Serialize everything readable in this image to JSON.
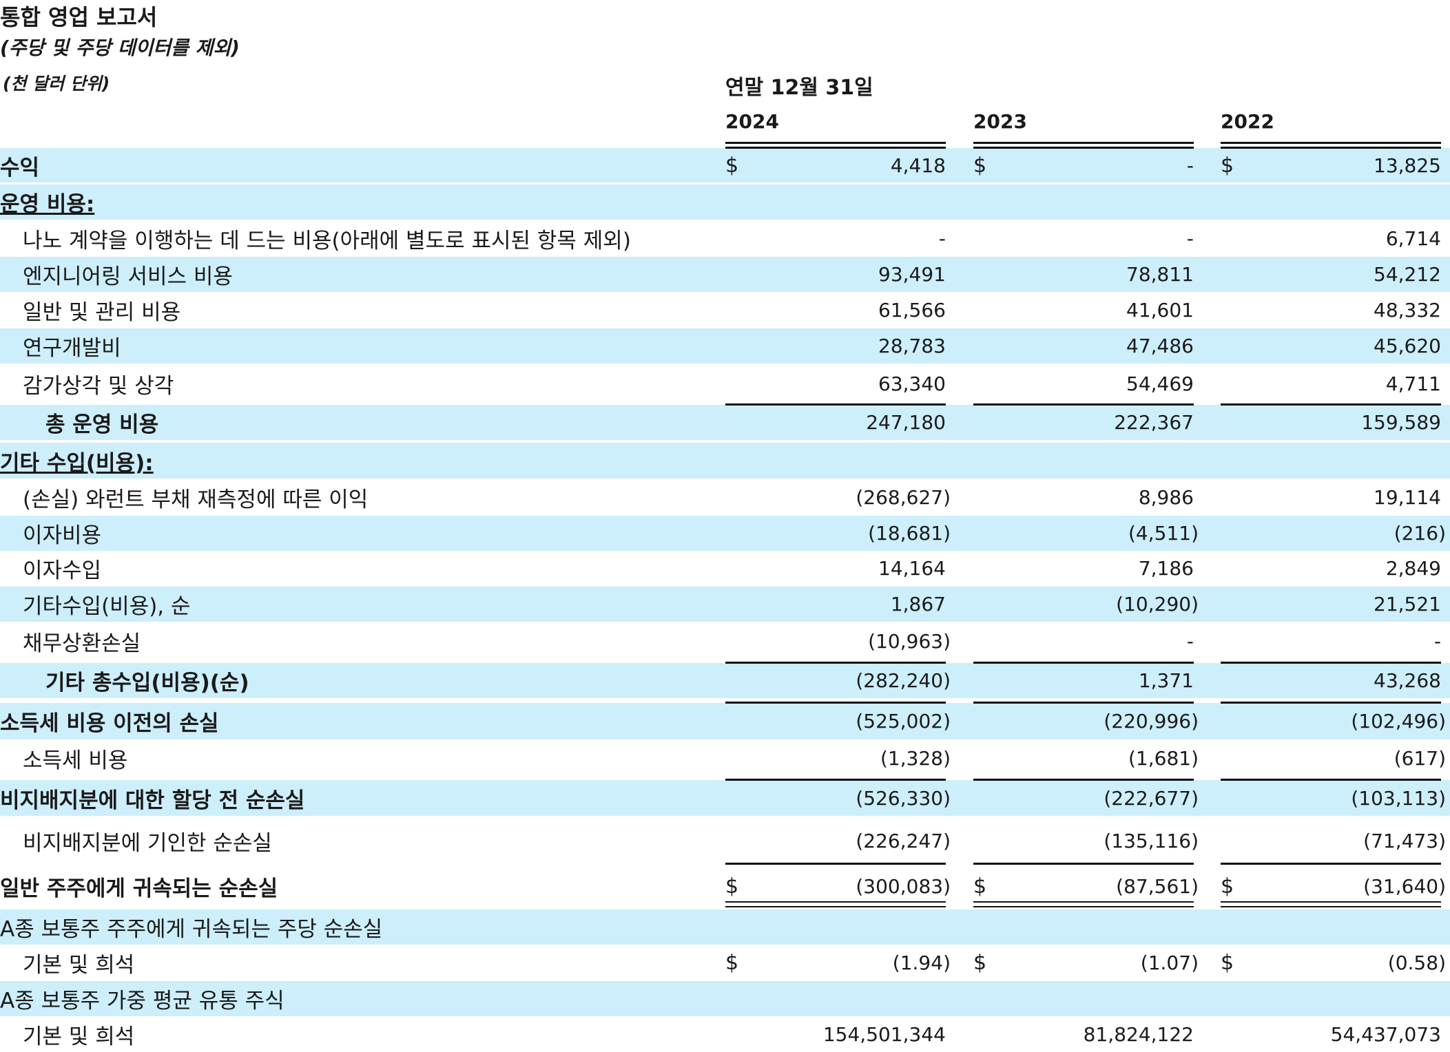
{
  "header": {
    "title": "통합 영업 보고서",
    "subtitle": "(주당 및 주당 데이터를 제외)",
    "units": "(천 달러 단위)",
    "period": "연말 12월 31일",
    "years": [
      "2024",
      "2023",
      "2022"
    ]
  },
  "rows": [
    {
      "label": "수익",
      "style": "bold",
      "shaded": true,
      "values": [
        "4,418",
        "-",
        "13,825"
      ],
      "currency": true,
      "over": [
        true,
        true,
        true
      ]
    },
    {
      "label": "운영 비용:",
      "style": "section",
      "shaded": true,
      "values": [
        "",
        "",
        ""
      ]
    },
    {
      "label": "나노 계약을 이행하는 데 드는 비용(아래에 별도로 표시된 항목 제외)",
      "style": "indent",
      "shaded": false,
      "values": [
        "-",
        "-",
        "6,714"
      ]
    },
    {
      "label": "엔지니어링 서비스 비용",
      "style": "indent",
      "shaded": true,
      "values": [
        "93,491",
        "78,811",
        "54,212"
      ]
    },
    {
      "label": "일반 및 관리 비용",
      "style": "indent",
      "shaded": false,
      "values": [
        "61,566",
        "41,601",
        "48,332"
      ]
    },
    {
      "label": "연구개발비",
      "style": "indent",
      "shaded": true,
      "values": [
        "28,783",
        "47,486",
        "45,620"
      ]
    },
    {
      "label": "감가상각 및 상각",
      "style": "indent",
      "shaded": false,
      "values": [
        "63,340",
        "54,469",
        "4,711"
      ]
    },
    {
      "label": "총 운영 비용",
      "style": "total",
      "shaded": true,
      "values": [
        "247,180",
        "222,367",
        "159,589"
      ],
      "over": [
        true,
        true,
        true
      ]
    },
    {
      "label": "기타 수입(비용):",
      "style": "section",
      "shaded": true,
      "values": [
        "",
        "",
        ""
      ]
    },
    {
      "label": "(손실) 와런트 부채 재측정에 따른 이익",
      "style": "indent",
      "shaded": false,
      "values": [
        "(268,627)",
        "8,986",
        "19,114"
      ]
    },
    {
      "label": "이자비용",
      "style": "indent",
      "shaded": true,
      "values": [
        "(18,681)",
        "(4,511)",
        "(216)"
      ]
    },
    {
      "label": "이자수입",
      "style": "indent",
      "shaded": false,
      "values": [
        "14,164",
        "7,186",
        "2,849"
      ]
    },
    {
      "label": "기타수입(비용), 순",
      "style": "indent",
      "shaded": true,
      "values": [
        "1,867",
        "(10,290)",
        "21,521"
      ]
    },
    {
      "label": "채무상환손실",
      "style": "indent",
      "shaded": false,
      "values": [
        "(10,963)",
        "-",
        "-"
      ]
    },
    {
      "label": "기타 총수입(비용)(순)",
      "style": "total",
      "shaded": true,
      "values": [
        "(282,240)",
        "1,371",
        "43,268"
      ],
      "over": [
        true,
        true,
        true
      ]
    },
    {
      "label": "소득세 비용 이전의 손실",
      "style": "bold",
      "shaded": true,
      "values": [
        "(525,002)",
        "(220,996)",
        "(102,496)"
      ],
      "over": [
        true,
        true,
        true
      ]
    },
    {
      "label": "소득세 비용",
      "style": "indent",
      "shaded": false,
      "values": [
        "(1,328)",
        "(1,681)",
        "(617)"
      ]
    },
    {
      "label": "비지배지분에 대한 할당 전 순손실",
      "style": "bold",
      "shaded": true,
      "values": [
        "(526,330)",
        "(222,677)",
        "(103,113)"
      ],
      "over": [
        true,
        true,
        true
      ]
    },
    {
      "label": "비지배지분에 기인한 순손실",
      "style": "indent",
      "shaded": false,
      "values": [
        "(226,247)",
        "(135,116)",
        "(71,473)"
      ]
    },
    {
      "label": "일반 주주에게 귀속되는 순손실",
      "style": "bold",
      "shaded": false,
      "values": [
        "(300,083)",
        "(87,561)",
        "(31,640)"
      ],
      "currency": true,
      "over": [
        true,
        true,
        true
      ],
      "under": "double"
    },
    {
      "label": "A종 보통주 주주에게 귀속되는 주당 순손실",
      "style": "plain",
      "shaded": true,
      "values": [
        "",
        "",
        ""
      ]
    },
    {
      "label": "기본 및 희석",
      "style": "indent",
      "shaded": false,
      "values": [
        "(1.94)",
        "(1.07)",
        "(0.58)"
      ],
      "currency": true
    },
    {
      "label": "A종 보통주 가중 평균 유통 주식",
      "style": "plain",
      "shaded": true,
      "values": [
        "",
        "",
        ""
      ]
    },
    {
      "label": "기본 및 희석",
      "style": "indent",
      "shaded": false,
      "values": [
        "154,501,344",
        "81,824,122",
        "54,437,073"
      ]
    }
  ],
  "currency_symbol": "$"
}
